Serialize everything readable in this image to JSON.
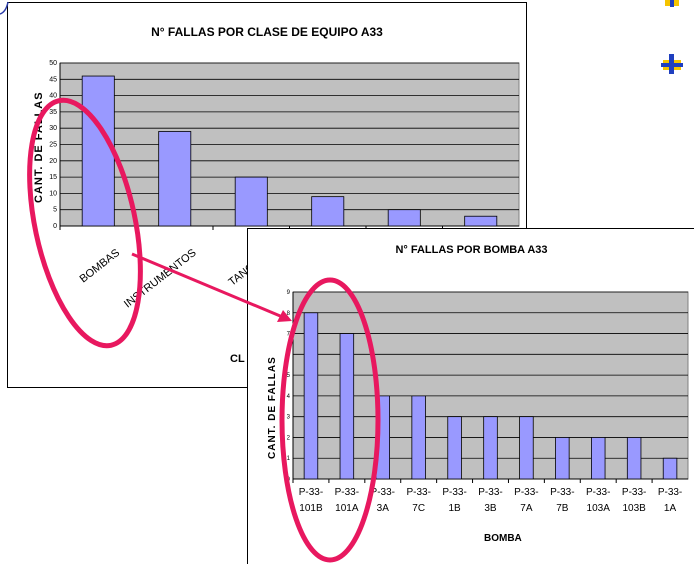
{
  "chart_data": [
    {
      "type": "bar",
      "title": "N° FALLAS POR CLASE DE EQUIPO A33",
      "ylabel": "CANT. DE FALLAS",
      "xlabel": "CL",
      "categories": [
        "BOMBAS",
        "INSTRUMENTOS",
        "TANQUES",
        "",
        "",
        ""
      ],
      "values": [
        46,
        29,
        15,
        9,
        5,
        3
      ],
      "ylim": [
        0,
        50
      ],
      "yticks": [
        "0",
        "5",
        "10",
        "15",
        "20",
        "25",
        "30",
        "35",
        "40",
        "45",
        "50"
      ],
      "grid": true,
      "bar_color": "#9999ff",
      "plot_color": "#c0c0c0"
    },
    {
      "type": "bar",
      "title": "N° FALLAS POR BOMBA A33",
      "ylabel": "CANT. DE FALLAS",
      "xlabel": "BOMBA",
      "categories": [
        "P-33-101B",
        "P-33-101A",
        "P-33-3A",
        "P-33-7C",
        "P-33-1B",
        "P-33-3B",
        "P-33-7A",
        "P-33-7B",
        "P-33-103A",
        "P-33-103B",
        "P-33-1A"
      ],
      "tick_top": [
        "P-33-",
        "P-33-",
        "P-33-",
        "P-33-",
        "P-33-",
        "P-33-",
        "P-33-",
        "P-33-",
        "P-33-",
        "P-33-",
        "P-33-"
      ],
      "tick_bottom": [
        "101B",
        "101A",
        "3A",
        "7C",
        "1B",
        "3B",
        "7A",
        "7B",
        "103A",
        "103B",
        "1A"
      ],
      "values": [
        8,
        7,
        4,
        4,
        3,
        3,
        3,
        2,
        2,
        2,
        1
      ],
      "ylim": [
        0,
        9
      ],
      "yticks": [
        "0",
        "1",
        "2",
        "3",
        "4",
        "5",
        "6",
        "7",
        "8",
        "9"
      ],
      "grid": true,
      "bar_color": "#9999ff",
      "plot_color": "#c0c0c0"
    }
  ],
  "colors": {
    "highlight": "#e8185f",
    "bullet_yellow": "#f5c400",
    "bullet_blue": "#1f3fbf"
  },
  "icons": [
    "ellipse-highlight",
    "arrow",
    "bullet-marker"
  ]
}
